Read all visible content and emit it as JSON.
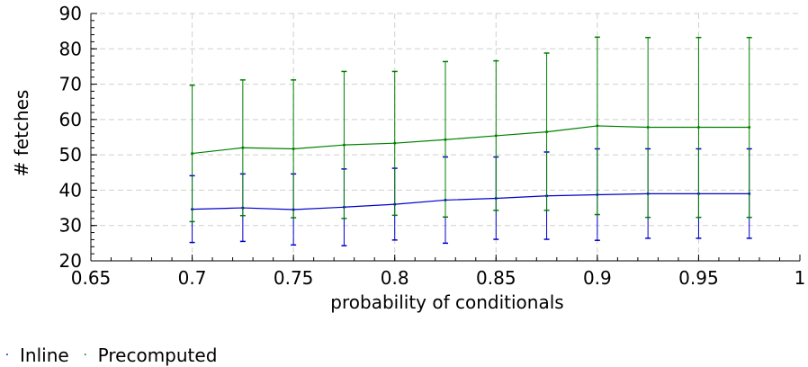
{
  "chart_data": {
    "type": "line",
    "title": "",
    "xlabel": "probability of conditionals",
    "ylabel": "# fetches",
    "xlim": [
      0.65,
      1
    ],
    "ylim": [
      20,
      90
    ],
    "xticks": [
      "0.65",
      "0.7",
      "0.75",
      "0.8",
      "0.85",
      "0.9",
      "0.95",
      "1"
    ],
    "yticks": [
      "20",
      "30",
      "40",
      "50",
      "60",
      "70",
      "80",
      "90"
    ],
    "grid": true,
    "legend_position": "bottom-left",
    "x": [
      0.7,
      0.725,
      0.75,
      0.775,
      0.8,
      0.825,
      0.85,
      0.875,
      0.9,
      0.925,
      0.95,
      0.975
    ],
    "series": [
      {
        "name": "Inline",
        "color": "#0000cc",
        "values": [
          34.6,
          35.0,
          34.5,
          35.2,
          36.0,
          37.2,
          37.7,
          38.4,
          38.7,
          39.0,
          39.0,
          39.0
        ],
        "err_low": [
          25.2,
          25.5,
          24.5,
          24.3,
          25.9,
          25.0,
          26.1,
          26.1,
          25.8,
          26.4,
          26.4,
          26.4
        ],
        "err_high": [
          44.1,
          44.6,
          44.6,
          46.0,
          46.2,
          49.4,
          49.4,
          50.8,
          51.7,
          51.7,
          51.7,
          51.7
        ]
      },
      {
        "name": "Precomputed",
        "color": "#008000",
        "values": [
          50.4,
          52.0,
          51.7,
          52.8,
          53.3,
          54.3,
          55.4,
          56.5,
          58.2,
          57.8,
          57.8,
          57.8
        ],
        "err_low": [
          31.1,
          32.8,
          32.2,
          32.0,
          32.9,
          32.4,
          34.3,
          34.3,
          33.1,
          32.3,
          32.3,
          32.3
        ],
        "err_high": [
          69.7,
          71.2,
          71.2,
          73.6,
          73.6,
          76.4,
          76.6,
          78.8,
          83.3,
          83.2,
          83.2,
          83.2
        ]
      }
    ]
  }
}
